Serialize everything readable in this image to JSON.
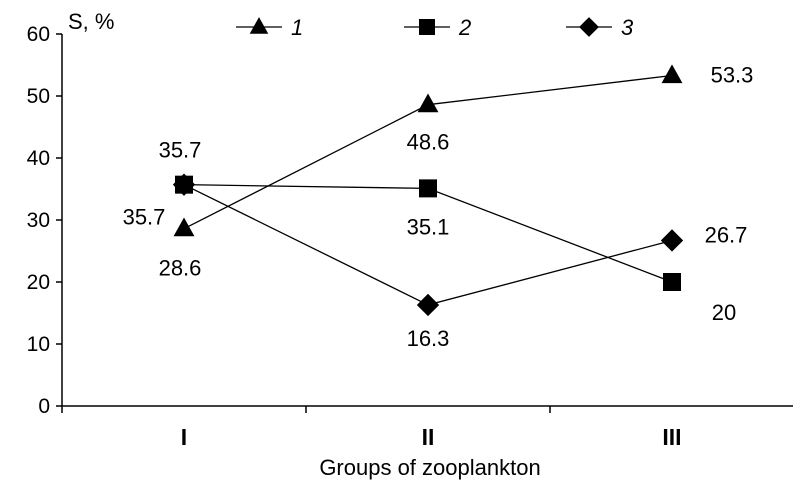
{
  "chart_data": {
    "type": "line",
    "categories": [
      "I",
      "II",
      "III"
    ],
    "series": [
      {
        "name": "1",
        "marker": "triangle",
        "values": [
          28.6,
          48.6,
          53.3
        ]
      },
      {
        "name": "2",
        "marker": "square",
        "values": [
          35.7,
          35.1,
          20
        ]
      },
      {
        "name": "3",
        "marker": "diamond",
        "values": [
          35.7,
          16.3,
          26.7
        ]
      }
    ],
    "data_labels": [
      [
        "28.6",
        "48.6",
        "53.3"
      ],
      [
        "35.7",
        "35.1",
        "20"
      ],
      [
        "35.7",
        "16.3",
        "26.7"
      ]
    ],
    "xlabel": "Groups of zooplankton",
    "ylabel": "S, %",
    "ylim": [
      0,
      60
    ],
    "yticks": [
      0,
      10,
      20,
      30,
      40,
      50,
      60
    ],
    "grid": false,
    "legend_position": "top",
    "colors": {
      "line": "#000000",
      "marker": "#000000"
    }
  }
}
